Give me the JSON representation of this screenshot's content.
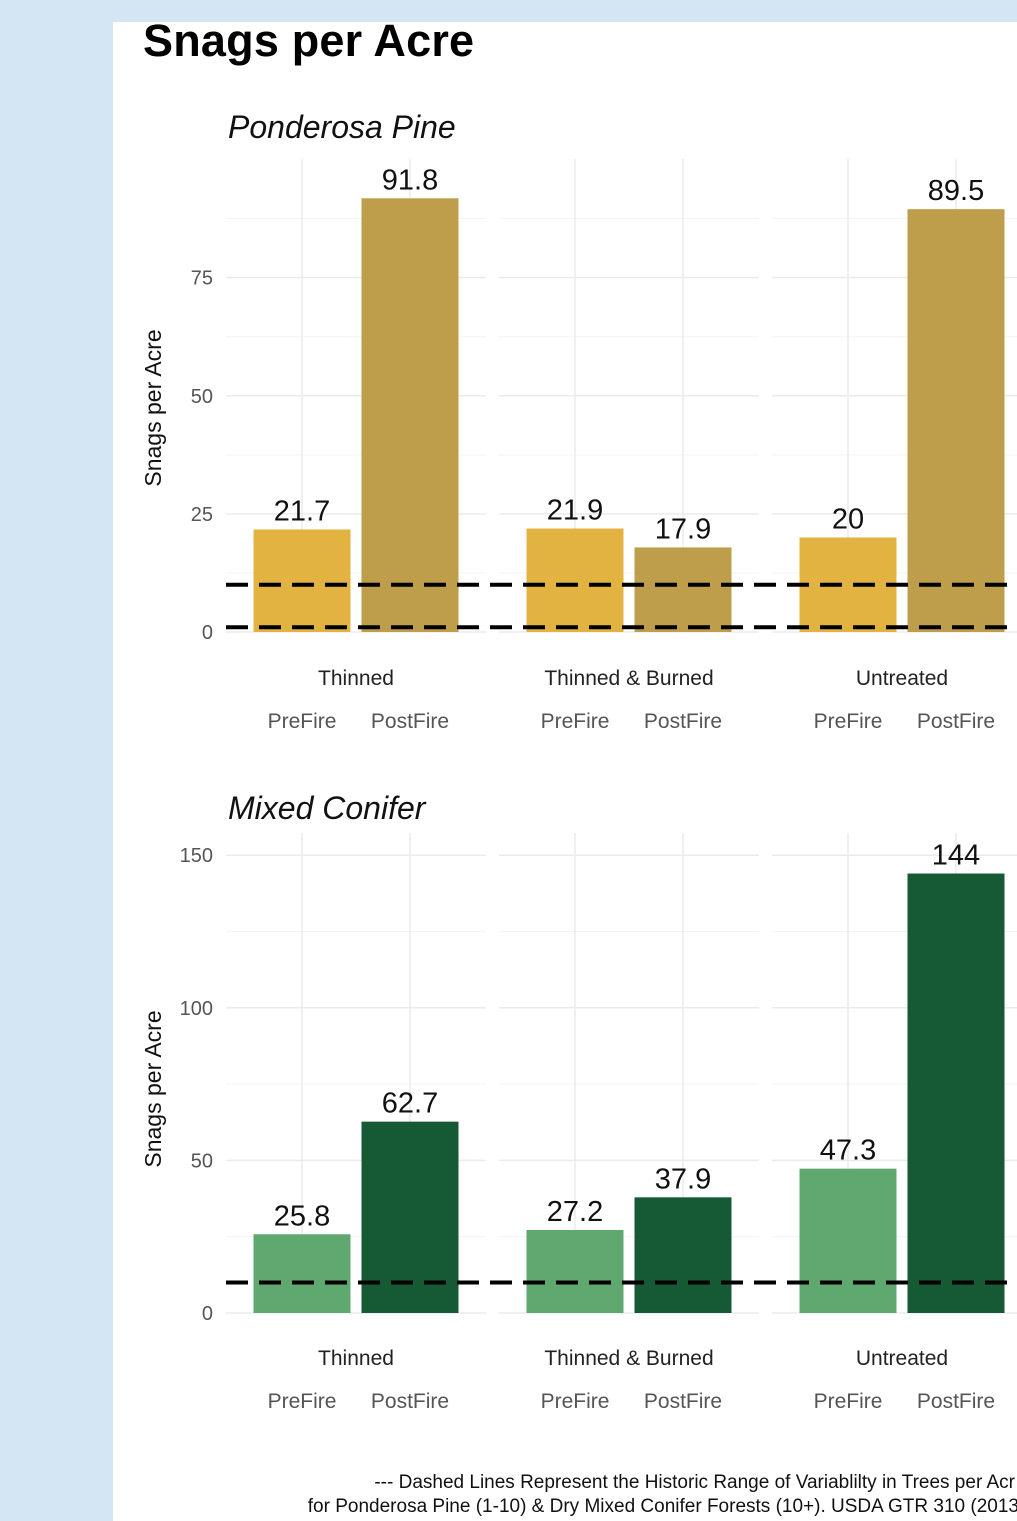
{
  "title": "Snags per Acre",
  "colors": {
    "page_background": "#d4e6f4",
    "panel_background": "#ffffff",
    "ponderosa_prefire": "#e3b342",
    "ponderosa_postfire": "#be9e4b",
    "mixed_prefire": "#5fa870",
    "mixed_postfire": "#165a35",
    "grid": "#ebebeb",
    "reference_line": "#000000"
  },
  "chart_data": [
    {
      "type": "bar",
      "title": "Ponderosa Pine",
      "ylabel": "Snags per Acre",
      "ylim": [
        0,
        98
      ],
      "yticks": [
        0,
        25,
        50,
        75
      ],
      "groups": [
        "Thinned",
        "Thinned & Burned",
        "Untreated"
      ],
      "categories": [
        "PreFire",
        "PostFire"
      ],
      "values": [
        [
          21.7,
          91.8
        ],
        [
          21.9,
          17.9
        ],
        [
          20,
          89.5
        ]
      ],
      "value_labels": [
        [
          "21.7",
          "91.8"
        ],
        [
          "21.9",
          "17.9"
        ],
        [
          "20",
          "89.5"
        ]
      ],
      "reference_lines": [
        1,
        10
      ],
      "grid": true
    },
    {
      "type": "bar",
      "title": "Mixed Conifer",
      "ylabel": "Snags per Acre",
      "ylim": [
        0,
        154
      ],
      "yticks": [
        0,
        50,
        100,
        150
      ],
      "groups": [
        "Thinned",
        "Thinned & Burned",
        "Untreated"
      ],
      "categories": [
        "PreFire",
        "PostFire"
      ],
      "values": [
        [
          25.8,
          62.7
        ],
        [
          27.2,
          37.9
        ],
        [
          47.3,
          144
        ]
      ],
      "value_labels": [
        [
          "25.8",
          "62.7"
        ],
        [
          "27.2",
          "37.9"
        ],
        [
          "47.3",
          "144"
        ]
      ],
      "reference_lines": [
        10
      ],
      "grid": true
    }
  ],
  "caption": {
    "line1": "--- Dashed Lines Represent the Historic Range of Variablilty in Trees per Acr",
    "line2": "for Ponderosa Pine (1-10) & Dry Mixed Conifer Forests (10+). USDA GTR 310 (2013"
  }
}
